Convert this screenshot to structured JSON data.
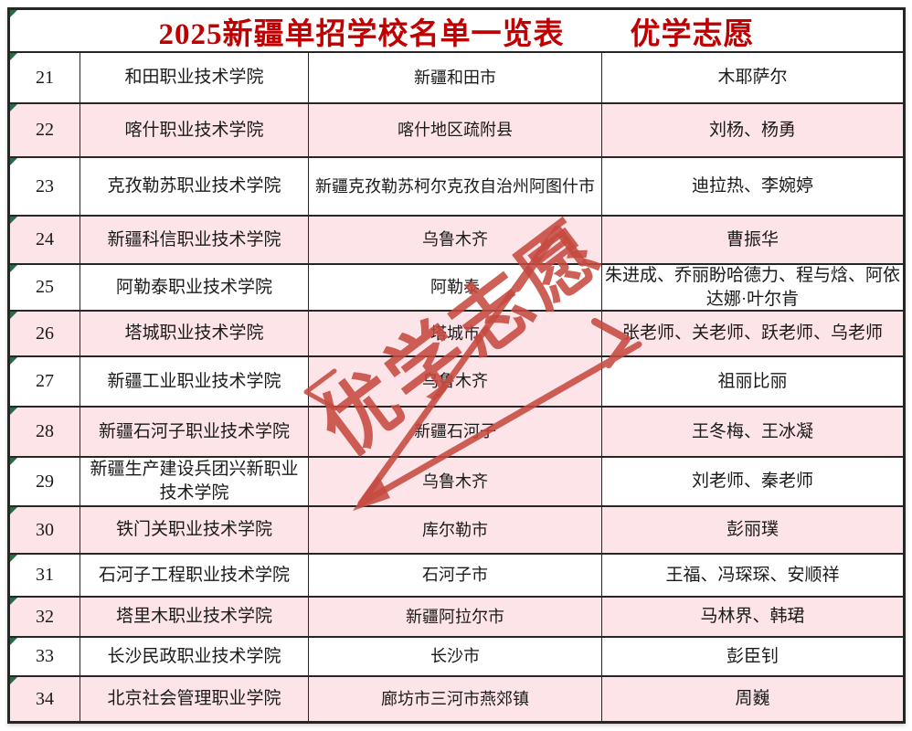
{
  "title": {
    "main": "2025新疆单招学校名单一览表",
    "brand": "优学志愿"
  },
  "watermark": {
    "text": "优学志愿"
  },
  "colors": {
    "title_red": "#c00000",
    "watermark_red": "#c6493f",
    "row_pink": "#fce4e8",
    "border_dark": "#262626",
    "flag_green": "#1e7145"
  },
  "rows": [
    {
      "no": "21",
      "school": "和田职业技术学院",
      "city": "新疆和田市",
      "teachers": "木耶萨尔",
      "highlight": "white",
      "city_highlight": "same"
    },
    {
      "no": "22",
      "school": "喀什职业技术学院",
      "city": "喀什地区疏附县",
      "teachers": "刘杨、杨勇",
      "highlight": "pink",
      "city_highlight": "same"
    },
    {
      "no": "23",
      "school": "克孜勒苏职业技术学院",
      "city": "新疆克孜勒苏柯尔克孜自治州阿图什市",
      "teachers": "迪拉热、李婉婷",
      "highlight": "white",
      "city_highlight": "same"
    },
    {
      "no": "24",
      "school": "新疆科信职业技术学院",
      "city": "乌鲁木齐",
      "teachers": "曹振华",
      "highlight": "pink",
      "city_highlight": "same"
    },
    {
      "no": "25",
      "school": "阿勒泰职业技术学院",
      "city": "阿勒泰",
      "teachers": "朱进成、乔丽盼哈德力、程与焓、阿依达娜·叶尔肯",
      "highlight": "white",
      "city_highlight": "same"
    },
    {
      "no": "26",
      "school": "塔城职业技术学院",
      "city": "塔城市",
      "teachers": "张老师、关老师、跃老师、乌老师",
      "highlight": "pink",
      "city_highlight": "same"
    },
    {
      "no": "27",
      "school": "新疆工业职业技术学院",
      "city": "乌鲁木齐",
      "teachers": "祖丽比丽",
      "highlight": "white",
      "city_highlight": "pink"
    },
    {
      "no": "28",
      "school": "新疆石河子职业技术学院",
      "city": "新疆石河子",
      "teachers": "王冬梅、王冰凝",
      "highlight": "pink",
      "city_highlight": "same"
    },
    {
      "no": "29",
      "school": "新疆生产建设兵团兴新职业技术学院",
      "city": "乌鲁木齐",
      "teachers": "刘老师、秦老师",
      "highlight": "white",
      "city_highlight": "pink"
    },
    {
      "no": "30",
      "school": "铁门关职业技术学院",
      "city": "库尔勒市",
      "teachers": "彭丽璞",
      "highlight": "pink",
      "city_highlight": "same"
    },
    {
      "no": "31",
      "school": "石河子工程职业技术学院",
      "city": "石河子市",
      "teachers": "王福、冯琛琛、安顺祥",
      "highlight": "white",
      "city_highlight": "same"
    },
    {
      "no": "32",
      "school": "塔里木职业技术学院",
      "city": "新疆阿拉尔市",
      "teachers": "马林界、韩珺",
      "highlight": "pink",
      "city_highlight": "same"
    },
    {
      "no": "33",
      "school": "长沙民政职业技术学院",
      "city": "长沙市",
      "teachers": "彭臣钊",
      "highlight": "white",
      "city_highlight": "same"
    },
    {
      "no": "34",
      "school": "北京社会管理职业学院",
      "city": "廊坊市三河市燕郊镇",
      "teachers": "周巍",
      "highlight": "pink",
      "city_highlight": "same"
    }
  ]
}
